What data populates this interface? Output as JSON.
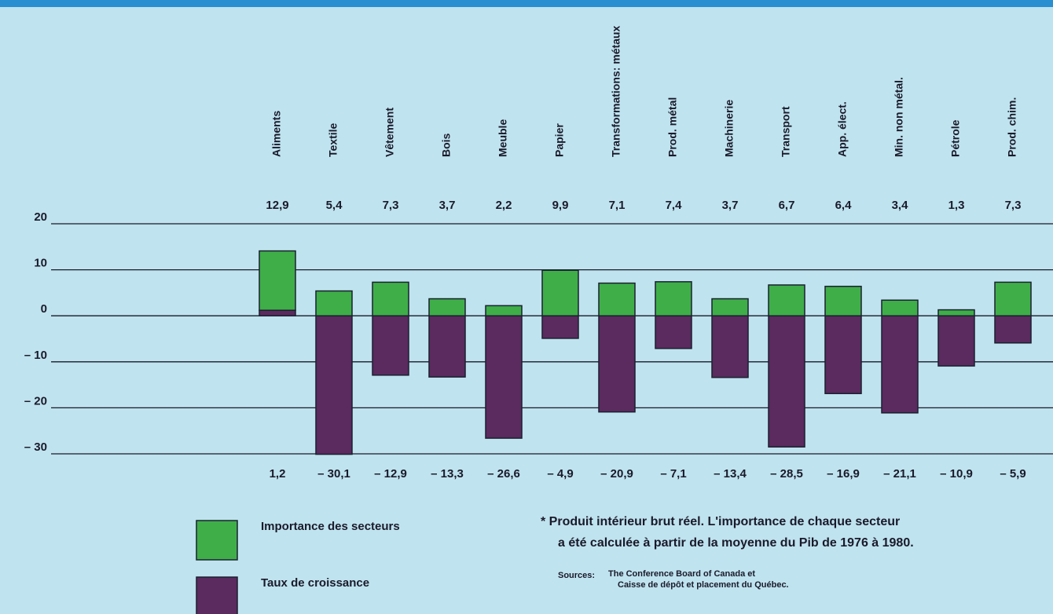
{
  "chart_data": {
    "type": "bar",
    "categories": [
      "Aliments",
      "Textile",
      "Vêtement",
      "Bois",
      "Meuble",
      "Papier",
      "Transformations: métaux",
      "Prod. métal",
      "Machinerie",
      "Transport",
      "App. élect.",
      "Min. non métal.",
      "Pétrole",
      "Prod. chim."
    ],
    "series": [
      {
        "name": "Importance des secteurs",
        "color": "#3fae49",
        "values": [
          12.9,
          5.4,
          7.3,
          3.7,
          2.2,
          9.9,
          7.1,
          7.4,
          3.7,
          6.7,
          6.4,
          3.4,
          1.3,
          7.3
        ],
        "value_labels": [
          "12,9",
          "5,4",
          "7,3",
          "3,7",
          "2,2",
          "9,9",
          "7,1",
          "7,4",
          "3,7",
          "6,7",
          "6,4",
          "3,4",
          "1,3",
          "7,3"
        ]
      },
      {
        "name": "Taux de croissance",
        "color": "#5b2a5e",
        "values": [
          1.2,
          -30.1,
          -12.9,
          -13.3,
          -26.6,
          -4.9,
          -20.9,
          -7.1,
          -13.4,
          -28.5,
          -16.9,
          -21.1,
          -10.9,
          -5.9
        ],
        "value_labels": [
          "1,2",
          "– 30,1",
          "– 12,9",
          "– 13,3",
          "– 26,6",
          "– 4,9",
          "– 20,9",
          "– 7,1",
          "– 13,4",
          "– 28,5",
          "– 16,9",
          "– 21,1",
          "– 10,9",
          "– 5,9"
        ]
      }
    ],
    "ylim": [
      -30,
      20
    ],
    "yticks": [
      {
        "value": -30,
        "label": "– 30"
      },
      {
        "value": -20,
        "label": "– 20"
      },
      {
        "value": -10,
        "label": "– 10"
      },
      0,
      10,
      20
    ],
    "grid": true,
    "note": [
      "* Produit intérieur brut réel. L'importance de chaque secteur",
      "a été calculée à partir de la moyenne du Pib de 1976 à 1980."
    ],
    "sources_label": "Sources:",
    "sources": [
      "The Conference Board of Canada et",
      "Caisse de dépôt et placement du Québec."
    ]
  }
}
